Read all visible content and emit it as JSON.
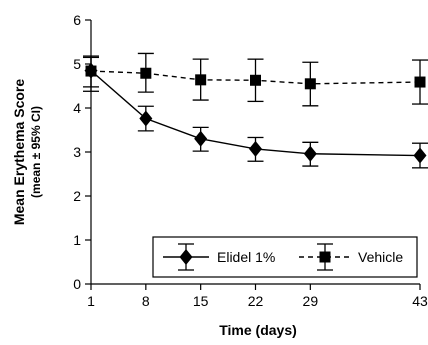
{
  "chart_data": {
    "type": "line",
    "xlabel": "Time (days)",
    "ylabel": "Mean Erythema Score",
    "ylabel_sub": "(mean ± 95% CI)",
    "x": [
      1,
      8,
      15,
      22,
      29,
      43
    ],
    "x_ticks": [
      1,
      8,
      15,
      22,
      29,
      43
    ],
    "y_ticks": [
      0,
      1,
      2,
      3,
      4,
      5,
      6
    ],
    "xlim": [
      1,
      43
    ],
    "ylim": [
      0,
      6
    ],
    "grid": false,
    "legend_position": "bottom-right",
    "series": [
      {
        "name": "Elidel 1%",
        "marker": "diamond",
        "line_style": "solid",
        "values": [
          4.85,
          3.76,
          3.3,
          3.07,
          2.96,
          2.92
        ],
        "ci_low": [
          4.48,
          3.48,
          3.02,
          2.79,
          2.68,
          2.64
        ],
        "ci_high": [
          5.18,
          4.04,
          3.56,
          3.33,
          3.22,
          3.2
        ]
      },
      {
        "name": "Vehicle",
        "marker": "square",
        "line_style": "dashed",
        "values": [
          4.84,
          4.79,
          4.64,
          4.63,
          4.55,
          4.59
        ],
        "ci_low": [
          4.38,
          4.36,
          4.18,
          4.15,
          4.05,
          4.09
        ],
        "ci_high": [
          5.15,
          5.24,
          5.11,
          5.11,
          5.04,
          5.09
        ]
      }
    ],
    "colors": {
      "line": "#000000",
      "background": "#ffffff"
    }
  }
}
